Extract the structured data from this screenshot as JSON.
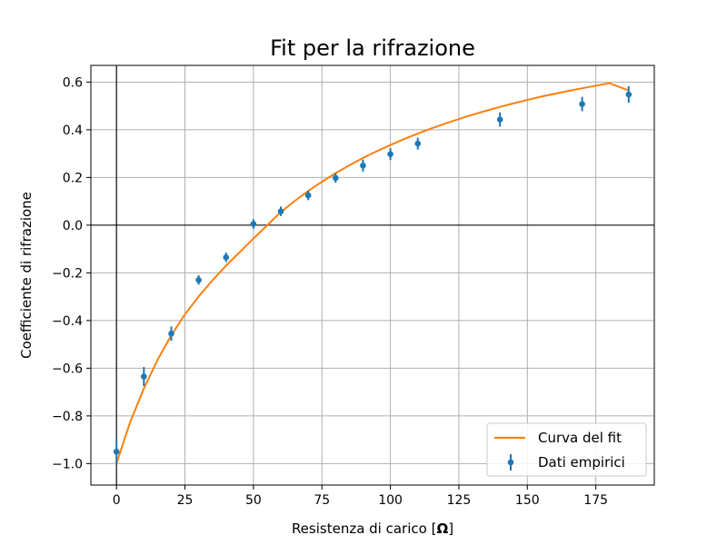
{
  "chart_data": {
    "type": "scatter",
    "title": "Fit per la rifrazione",
    "xlabel_prefix": "Resistenza di carico [",
    "xlabel_unit": "Ω",
    "xlabel_suffix": "]",
    "ylabel": "Coefficiente di rifrazione",
    "xlim": [
      -9.35,
      196.35
    ],
    "ylim": [
      -1.09,
      0.67
    ],
    "x_ticks": [
      0,
      25,
      50,
      75,
      100,
      125,
      150,
      175
    ],
    "x_tick_labels": [
      "0",
      "25",
      "50",
      "75",
      "100",
      "125",
      "150",
      "175"
    ],
    "y_ticks": [
      -1.0,
      -0.8,
      -0.6,
      -0.4,
      -0.2,
      0.0,
      0.2,
      0.4,
      0.6
    ],
    "y_tick_labels": [
      "−1.0",
      "−0.8",
      "−0.6",
      "−0.4",
      "−0.2",
      "0.0",
      "0.2",
      "0.4",
      "0.6"
    ],
    "grid": true,
    "zero_lines": true,
    "legend_position": "lower-right",
    "series": [
      {
        "name": "Curva del fit",
        "kind": "line",
        "color": "#ff7f0e",
        "x": [
          0,
          5,
          10,
          15,
          20,
          25,
          30,
          35,
          40,
          45,
          50,
          55,
          60,
          65,
          70,
          75,
          80,
          85,
          90,
          95,
          100,
          105,
          110,
          115,
          120,
          125,
          130,
          135,
          140,
          145,
          150,
          155,
          160,
          165,
          170,
          175,
          180,
          187
        ],
        "y": [
          -1.0,
          -0.826,
          -0.685,
          -0.565,
          -0.462,
          -0.374,
          -0.299,
          -0.232,
          -0.17,
          -0.113,
          -0.056,
          -0.001,
          0.055,
          0.101,
          0.143,
          0.182,
          0.218,
          0.251,
          0.282,
          0.31,
          0.336,
          0.361,
          0.384,
          0.406,
          0.426,
          0.445,
          0.463,
          0.48,
          0.496,
          0.511,
          0.525,
          0.539,
          0.551,
          0.563,
          0.574,
          0.585,
          0.595,
          0.565
        ]
      },
      {
        "name": "Dati empirici",
        "kind": "errorbar",
        "color": "#1f77b4",
        "x": [
          0,
          10,
          20,
          30,
          40,
          50,
          60,
          70,
          80,
          90,
          100,
          110,
          140,
          170,
          187
        ],
        "y": [
          -0.95,
          -0.635,
          -0.455,
          -0.23,
          -0.135,
          0.005,
          0.058,
          0.125,
          0.198,
          0.25,
          0.298,
          0.342,
          0.443,
          0.508,
          0.548
        ],
        "yerr": [
          0.05,
          0.04,
          0.03,
          0.02,
          0.02,
          0.02,
          0.02,
          0.02,
          0.02,
          0.025,
          0.025,
          0.025,
          0.03,
          0.03,
          0.035
        ]
      }
    ]
  }
}
